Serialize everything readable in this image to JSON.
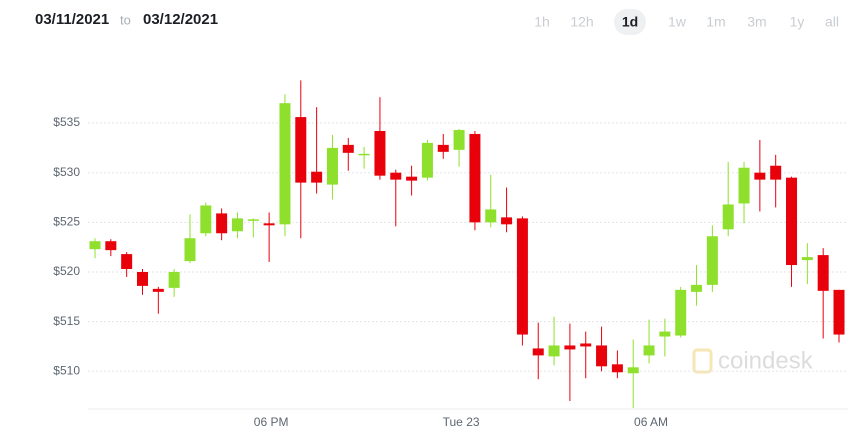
{
  "header": {
    "from": "03/11/2021",
    "to_label": "to",
    "to": "03/12/2021",
    "ranges": [
      "1h",
      "12h",
      "1d",
      "1w",
      "1m",
      "3m",
      "1y",
      "all"
    ],
    "selected": "1d"
  },
  "watermark": "coindesk",
  "chart_data": {
    "type": "candlestick",
    "categories": [
      null,
      null,
      null,
      null,
      null,
      null,
      null,
      null,
      null,
      null,
      null,
      "06 PM",
      null,
      null,
      null,
      null,
      null,
      null,
      null,
      null,
      null,
      null,
      null,
      "Tue 23",
      null,
      null,
      null,
      null,
      null,
      null,
      null,
      null,
      null,
      null,
      null,
      "06 AM",
      null,
      null,
      null,
      null,
      null,
      null,
      null,
      null,
      null,
      null,
      null,
      null
    ],
    "open": [
      522.3,
      523.1,
      521.8,
      520.0,
      518.3,
      518.4,
      521.1,
      523.9,
      525.9,
      524.1,
      525.2,
      524.9,
      524.8,
      535.6,
      530.1,
      528.8,
      532.8,
      531.8,
      534.2,
      530.0,
      529.6,
      529.5,
      532.8,
      532.3,
      533.9,
      525.0,
      525.5,
      525.4,
      512.3,
      511.5,
      512.6,
      512.8,
      512.6,
      510.7,
      509.8,
      511.6,
      513.5,
      513.6,
      518.0,
      518.7,
      524.3,
      526.9,
      530.0,
      530.7,
      529.5,
      521.2,
      521.7,
      518.2
    ],
    "high": [
      523.4,
      523.3,
      522.0,
      520.3,
      518.5,
      520.3,
      525.8,
      527.0,
      526.4,
      526.0,
      525.4,
      526.0,
      537.9,
      539.3,
      536.6,
      533.8,
      533.5,
      532.6,
      537.6,
      530.3,
      530.7,
      533.3,
      533.9,
      534.4,
      534.2,
      529.8,
      528.5,
      525.6,
      514.9,
      515.5,
      514.8,
      514.0,
      514.5,
      512.1,
      513.2,
      515.2,
      515.3,
      518.5,
      520.7,
      524.7,
      531.1,
      531.1,
      533.3,
      531.8,
      529.6,
      522.9,
      522.4,
      518.2
    ],
    "low": [
      521.4,
      521.6,
      519.5,
      517.7,
      515.8,
      517.5,
      520.9,
      523.6,
      523.2,
      523.4,
      523.5,
      521.0,
      523.6,
      523.4,
      527.9,
      527.3,
      530.2,
      530.4,
      529.3,
      524.6,
      527.7,
      529.2,
      531.4,
      530.6,
      524.2,
      524.5,
      524.0,
      512.6,
      509.2,
      510.6,
      507.0,
      509.3,
      510.0,
      509.3,
      506.3,
      510.8,
      511.5,
      513.4,
      516.6,
      518.0,
      523.6,
      524.9,
      526.1,
      526.5,
      518.5,
      518.8,
      513.3,
      512.9
    ],
    "close": [
      523.1,
      522.2,
      520.3,
      518.6,
      518.0,
      520.0,
      523.4,
      526.7,
      523.9,
      525.4,
      525.3,
      524.7,
      537.0,
      529.0,
      529.0,
      532.5,
      532.0,
      531.9,
      529.7,
      529.3,
      529.2,
      533.0,
      532.1,
      534.3,
      525.0,
      526.3,
      524.8,
      513.7,
      511.6,
      512.6,
      512.2,
      512.5,
      510.5,
      509.9,
      510.4,
      512.6,
      514.0,
      518.2,
      518.7,
      523.6,
      526.8,
      530.5,
      529.3,
      529.3,
      520.7,
      521.5,
      518.1,
      513.7
    ],
    "up_color": "#8ee02c",
    "down_color": "#e8000b",
    "ylim": [
      506,
      541.5
    ],
    "yticks": [
      {
        "value": 510,
        "label": "$510"
      },
      {
        "value": 515,
        "label": "$515"
      },
      {
        "value": 520,
        "label": "$520"
      },
      {
        "value": 525,
        "label": "$525"
      },
      {
        "value": 530,
        "label": "$530"
      },
      {
        "value": 535,
        "label": "$535"
      }
    ],
    "grid": true
  }
}
